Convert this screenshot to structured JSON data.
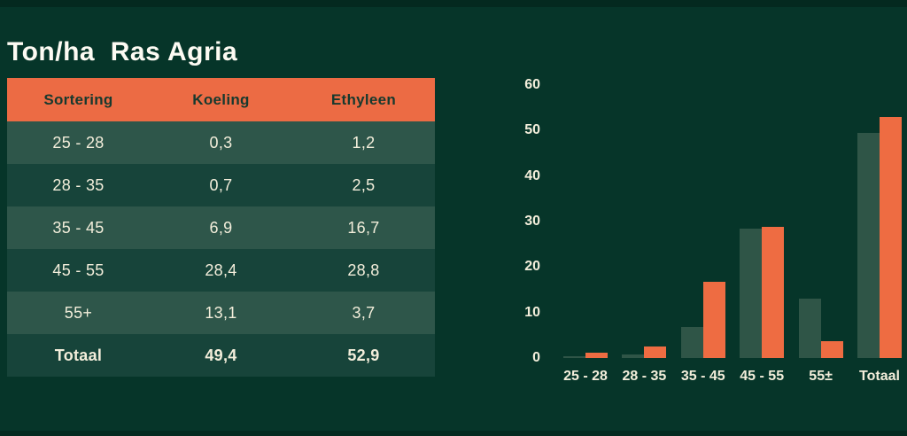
{
  "page": {
    "title": "Ton/ha  Ras Agria",
    "background_color": "#063529",
    "edge_band_color": "#04291f",
    "title_color": "#fdfbf3"
  },
  "table": {
    "headers": [
      "Sortering",
      "Koeling",
      "Ethyleen"
    ],
    "rows": [
      {
        "sortering": "25 - 28",
        "koeling": "0,3",
        "ethyleen": "1,2",
        "bold": false
      },
      {
        "sortering": "28 - 35",
        "koeling": "0,7",
        "ethyleen": "2,5",
        "bold": false
      },
      {
        "sortering": "35 - 45",
        "koeling": "6,9",
        "ethyleen": "16,7",
        "bold": false
      },
      {
        "sortering": "45 - 55",
        "koeling": "28,4",
        "ethyleen": "28,8",
        "bold": false
      },
      {
        "sortering": "55+",
        "koeling": "13,1",
        "ethyleen": "3,7",
        "bold": false
      },
      {
        "sortering": "Totaal",
        "koeling": "49,4",
        "ethyleen": "52,9",
        "bold": true
      }
    ],
    "colors": {
      "header_bg": "#ec6b44",
      "header_text": "#17392e",
      "row_light": "#2e564a",
      "row_dark": "#17443a",
      "cell_text": "#f3eedb"
    }
  },
  "chart_data": {
    "type": "bar",
    "title": "",
    "xlabel": "",
    "ylabel": "",
    "categories": [
      "25 - 28",
      "28 - 35",
      "35 - 45",
      "45 - 55",
      "55±",
      "Totaal"
    ],
    "series": [
      {
        "name": "Koeling",
        "color": "#2f5547",
        "values": [
          0.3,
          0.7,
          6.9,
          28.4,
          13.1,
          49.4
        ]
      },
      {
        "name": "Ethyleen",
        "color": "#ee6c42",
        "values": [
          1.2,
          2.5,
          16.7,
          28.8,
          3.7,
          52.9
        ]
      }
    ],
    "ylim": [
      0,
      60
    ],
    "yticks": [
      0,
      10,
      20,
      30,
      40,
      50,
      60
    ],
    "grid": false,
    "legend": "none",
    "axis_label_color": "#f3eedb"
  }
}
